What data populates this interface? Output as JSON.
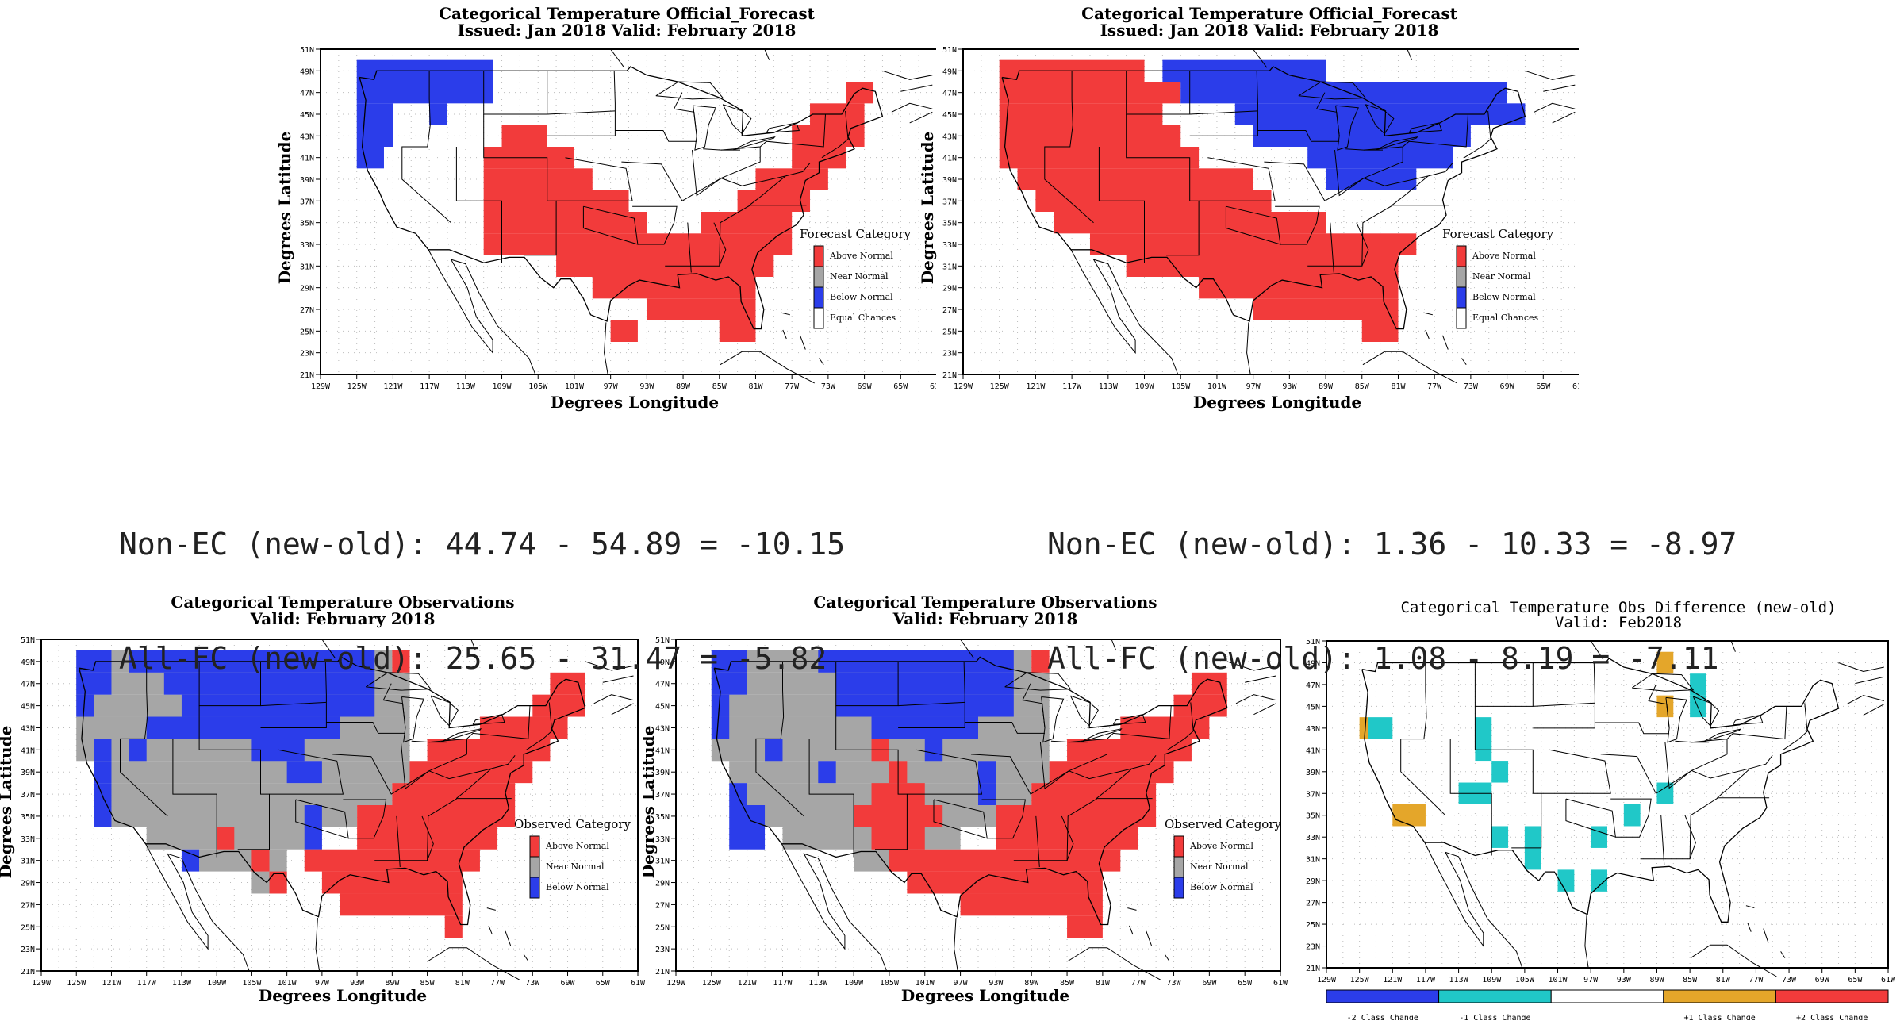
{
  "colors": {
    "above": "#f23b3b",
    "near": "#a6a6a6",
    "below": "#2b3dea",
    "equal": "#ffffff",
    "minus2": "#2b3dea",
    "minus1": "#20c8c8",
    "plus1": "#e4a62a",
    "plus2": "#f23b3b",
    "grid": "#bdbdbd",
    "line": "#000000"
  },
  "panels": [
    {
      "id": "fc_old",
      "title1": "Categorical Temperature Official_Forecast",
      "title2": "Issued: Jan 2018 Valid: February 2018",
      "xlabel": "Degrees Longitude",
      "ylabel": "Degrees Latitude",
      "legend_title": "Forecast Category",
      "legend": [
        {
          "label": "Above Normal",
          "cat": "above"
        },
        {
          "label": "Near Normal",
          "cat": "near"
        },
        {
          "label": "Below Normal",
          "cat": "below"
        },
        {
          "label": "Equal Chances",
          "cat": "equal"
        }
      ],
      "xticks": [
        "129W",
        "125W",
        "121W",
        "117W",
        "113W",
        "109W",
        "105W",
        "101W",
        "97W",
        "93W",
        "89W",
        "85W",
        "81W",
        "77W",
        "73W",
        "69W",
        "65W",
        "61W"
      ],
      "yticks": [
        "21N",
        "23N",
        "25N",
        "27N",
        "29N",
        "31N",
        "33N",
        "35N",
        "37N",
        "39N",
        "41N",
        "43N",
        "45N",
        "47N",
        "49N",
        "51N"
      ],
      "cells": {
        "below": [
          [
            49,
            -125,
            -110
          ],
          [
            47,
            -125,
            -110
          ],
          [
            45,
            -125,
            -121
          ],
          [
            45,
            -117,
            -115
          ],
          [
            43,
            -125,
            -121
          ],
          [
            41,
            -125,
            -122
          ]
        ],
        "above": [
          [
            43,
            -109,
            -104
          ],
          [
            41,
            -111,
            -101
          ],
          [
            39,
            -111,
            -99
          ],
          [
            37,
            -111,
            -95
          ],
          [
            35,
            -111,
            -93
          ],
          [
            33,
            -111,
            -77
          ],
          [
            31,
            -103,
            -79
          ],
          [
            29,
            -99,
            -81
          ],
          [
            27,
            -93,
            -81
          ],
          [
            25,
            -97,
            -94
          ],
          [
            25,
            -85,
            -81
          ],
          [
            35,
            -87,
            -77
          ],
          [
            37,
            -83,
            -75
          ],
          [
            39,
            -81,
            -73
          ],
          [
            41,
            -77,
            -71
          ],
          [
            43,
            -77,
            -69
          ],
          [
            45,
            -75,
            -69
          ],
          [
            47,
            -71,
            -68
          ]
        ]
      }
    },
    {
      "id": "fc_new",
      "title1": "Categorical Temperature Official_Forecast",
      "title2": "Issued: Jan 2018 Valid: February 2018",
      "xlabel": "Degrees Longitude",
      "ylabel": "Degrees Latitude",
      "legend_title": "Forecast Category",
      "legend": [
        {
          "label": "Above Normal",
          "cat": "above"
        },
        {
          "label": "Near Normal",
          "cat": "near"
        },
        {
          "label": "Below Normal",
          "cat": "below"
        },
        {
          "label": "Equal Chances",
          "cat": "equal"
        }
      ],
      "xticks": [
        "129W",
        "125W",
        "121W",
        "117W",
        "113W",
        "109W",
        "105W",
        "101W",
        "97W",
        "93W",
        "89W",
        "85W",
        "81W",
        "77W",
        "73W",
        "69W",
        "65W",
        "61W"
      ],
      "yticks": [
        "21N",
        "23N",
        "25N",
        "27N",
        "29N",
        "31N",
        "33N",
        "35N",
        "37N",
        "39N",
        "41N",
        "43N",
        "45N",
        "47N",
        "49N",
        "51N"
      ],
      "cells": {
        "above": [
          [
            49,
            -125,
            -109
          ],
          [
            47,
            -125,
            -105
          ],
          [
            45,
            -125,
            -107
          ],
          [
            43,
            -125,
            -105
          ],
          [
            41,
            -125,
            -103
          ],
          [
            39,
            -123,
            -97
          ],
          [
            37,
            -121,
            -95
          ],
          [
            35,
            -119,
            -89
          ],
          [
            33,
            -115,
            -79
          ],
          [
            31,
            -111,
            -81
          ],
          [
            29,
            -103,
            -81
          ],
          [
            27,
            -97,
            -81
          ],
          [
            25,
            -85,
            -81
          ]
        ],
        "below": [
          [
            49,
            -107,
            -89
          ],
          [
            47,
            -105,
            -69
          ],
          [
            45,
            -99,
            -67
          ],
          [
            43,
            -97,
            -73
          ],
          [
            41,
            -91,
            -75
          ],
          [
            39,
            -89,
            -79
          ]
        ]
      }
    },
    {
      "id": "obs_old",
      "title1": "Categorical Temperature Observations",
      "title2": "Valid: February 2018",
      "xlabel": "Degrees Longitude",
      "ylabel": "Degrees Latitude",
      "legend_title": "Observed Category",
      "legend": [
        {
          "label": "Above Normal",
          "cat": "above"
        },
        {
          "label": "Near Normal",
          "cat": "near"
        },
        {
          "label": "Below Normal",
          "cat": "below"
        }
      ],
      "xticks": [
        "129W",
        "125W",
        "121W",
        "117W",
        "113W",
        "109W",
        "105W",
        "101W",
        "97W",
        "93W",
        "89W",
        "85W",
        "81W",
        "77W",
        "73W",
        "69W",
        "65W",
        "61W"
      ],
      "yticks": [
        "21N",
        "23N",
        "25N",
        "27N",
        "29N",
        "31N",
        "33N",
        "35N",
        "37N",
        "39N",
        "41N",
        "43N",
        "45N",
        "47N",
        "49N",
        "51N"
      ],
      "cells": {
        "near": [
          [
            49,
            -125,
            -89
          ],
          [
            47,
            -125,
            -87
          ],
          [
            45,
            -125,
            -87
          ],
          [
            43,
            -125,
            -87
          ],
          [
            41,
            -125,
            -87
          ],
          [
            39,
            -123,
            -87
          ],
          [
            37,
            -121,
            -89
          ],
          [
            35,
            -121,
            -93
          ],
          [
            33,
            -117,
            -97
          ],
          [
            31,
            -111,
            -101
          ],
          [
            29,
            -105,
            -101
          ]
        ],
        "below": [
          [
            49,
            -125,
            -121
          ],
          [
            49,
            -119,
            -91
          ],
          [
            47,
            -125,
            -121
          ],
          [
            47,
            -115,
            -91
          ],
          [
            45,
            -125,
            -123
          ],
          [
            45,
            -113,
            -91
          ],
          [
            43,
            -117,
            -95
          ],
          [
            41,
            -123,
            -121
          ],
          [
            41,
            -119,
            -117
          ],
          [
            41,
            -105,
            -99
          ],
          [
            39,
            -123,
            -121
          ],
          [
            39,
            -101,
            -97
          ],
          [
            37,
            -123,
            -121
          ],
          [
            35,
            -123,
            -121
          ],
          [
            35,
            -99,
            -97
          ],
          [
            33,
            -99,
            -97
          ],
          [
            31,
            -113,
            -111
          ]
        ],
        "above": [
          [
            49,
            -89,
            -87
          ],
          [
            47,
            -71,
            -67
          ],
          [
            45,
            -73,
            -67
          ],
          [
            43,
            -79,
            -69
          ],
          [
            41,
            -85,
            -71
          ],
          [
            39,
            -87,
            -73
          ],
          [
            37,
            -89,
            -75
          ],
          [
            35,
            -93,
            -75
          ],
          [
            33,
            -109,
            -107
          ],
          [
            33,
            -93,
            -77
          ],
          [
            31,
            -105,
            -103
          ],
          [
            31,
            -99,
            -79
          ],
          [
            29,
            -103,
            -101
          ],
          [
            29,
            -97,
            -81
          ],
          [
            27,
            -95,
            -81
          ],
          [
            25,
            -83,
            -81
          ]
        ]
      }
    },
    {
      "id": "obs_new",
      "title1": "Categorical Temperature Observations",
      "title2": "Valid: February 2018",
      "xlabel": "Degrees Longitude",
      "ylabel": "Degrees Latitude",
      "legend_title": "Observed Category",
      "legend": [
        {
          "label": "Above Normal",
          "cat": "above"
        },
        {
          "label": "Near Normal",
          "cat": "near"
        },
        {
          "label": "Below Normal",
          "cat": "below"
        }
      ],
      "xticks": [
        "129W",
        "125W",
        "121W",
        "117W",
        "113W",
        "109W",
        "105W",
        "101W",
        "97W",
        "93W",
        "89W",
        "85W",
        "81W",
        "77W",
        "73W",
        "69W",
        "65W",
        "61W"
      ],
      "yticks": [
        "21N",
        "23N",
        "25N",
        "27N",
        "29N",
        "31N",
        "33N",
        "35N",
        "37N",
        "39N",
        "41N",
        "43N",
        "45N",
        "47N",
        "49N",
        "51N"
      ],
      "cells": {
        "near": [
          [
            49,
            -125,
            -89
          ],
          [
            47,
            -125,
            -87
          ],
          [
            45,
            -125,
            -87
          ],
          [
            43,
            -125,
            -87
          ],
          [
            41,
            -125,
            -87
          ],
          [
            39,
            -123,
            -87
          ],
          [
            37,
            -121,
            -89
          ],
          [
            35,
            -121,
            -93
          ],
          [
            33,
            -117,
            -97
          ],
          [
            31,
            -109,
            -101
          ]
        ],
        "below": [
          [
            49,
            -125,
            -121
          ],
          [
            49,
            -113,
            -91
          ],
          [
            47,
            -125,
            -121
          ],
          [
            47,
            -111,
            -91
          ],
          [
            45,
            -125,
            -123
          ],
          [
            45,
            -111,
            -91
          ],
          [
            43,
            -125,
            -123
          ],
          [
            43,
            -107,
            -95
          ],
          [
            41,
            -119,
            -117
          ],
          [
            41,
            -101,
            -99
          ],
          [
            39,
            -113,
            -111
          ],
          [
            39,
            -95,
            -93
          ],
          [
            37,
            -123,
            -121
          ],
          [
            37,
            -95,
            -93
          ],
          [
            35,
            -123,
            -119
          ],
          [
            33,
            -123,
            -119
          ]
        ],
        "above": [
          [
            49,
            -89,
            -87
          ],
          [
            47,
            -71,
            -67
          ],
          [
            45,
            -73,
            -67
          ],
          [
            43,
            -79,
            -69
          ],
          [
            41,
            -107,
            -105
          ],
          [
            41,
            -85,
            -71
          ],
          [
            39,
            -105,
            -103
          ],
          [
            39,
            -87,
            -73
          ],
          [
            37,
            -107,
            -101
          ],
          [
            37,
            -89,
            -75
          ],
          [
            35,
            -109,
            -99
          ],
          [
            35,
            -93,
            -75
          ],
          [
            33,
            -107,
            -101
          ],
          [
            33,
            -93,
            -77
          ],
          [
            31,
            -105,
            -79
          ],
          [
            29,
            -103,
            -81
          ],
          [
            27,
            -97,
            -81
          ],
          [
            25,
            -85,
            -81
          ]
        ]
      }
    },
    {
      "id": "obs_diff",
      "title1": "Categorical Temperature Obs Difference (new-old)",
      "title2": "Valid: Feb2018",
      "xlabel": "",
      "ylabel": "",
      "legend_title": "",
      "legend": [],
      "colorbar": [
        {
          "label": "-2 Class Change",
          "cat": "minus2"
        },
        {
          "label": "-1 Class Change",
          "cat": "minus1"
        },
        {
          "label": "",
          "cat": "equal"
        },
        {
          "label": "+1 Class Change",
          "cat": "plus1"
        },
        {
          "label": "+2 Class Change",
          "cat": "plus2"
        }
      ],
      "xticks": [
        "129W",
        "125W",
        "121W",
        "117W",
        "113W",
        "109W",
        "105W",
        "101W",
        "97W",
        "93W",
        "89W",
        "85W",
        "81W",
        "77W",
        "73W",
        "69W",
        "65W",
        "61W"
      ],
      "yticks": [
        "21N",
        "23N",
        "25N",
        "27N",
        "29N",
        "31N",
        "33N",
        "35N",
        "37N",
        "39N",
        "41N",
        "43N",
        "45N",
        "47N",
        "49N",
        "51N"
      ],
      "cells": {
        "plus1": [
          [
            43,
            -125,
            -124
          ],
          [
            35,
            -121,
            -117
          ],
          [
            49,
            -89,
            -87
          ],
          [
            45,
            -89,
            -87
          ]
        ],
        "minus1": [
          [
            43,
            -124,
            -121
          ],
          [
            43,
            -111,
            -109
          ],
          [
            41,
            -111,
            -109
          ],
          [
            39,
            -109,
            -107
          ],
          [
            37,
            -113,
            -109
          ],
          [
            35,
            -93,
            -91
          ],
          [
            33,
            -109,
            -107
          ],
          [
            33,
            -105,
            -103
          ],
          [
            33,
            -97,
            -95
          ],
          [
            31,
            -105,
            -103
          ],
          [
            29,
            -101,
            -99
          ],
          [
            29,
            -97,
            -95
          ],
          [
            37,
            -89,
            -87
          ],
          [
            45,
            -85,
            -83
          ],
          [
            47,
            -85,
            -83
          ]
        ]
      }
    }
  ],
  "scores": [
    {
      "line1": "Non-EC (new-old): 44.74 - 54.89 = -10.15",
      "line2": "All-FC (new-old): 25.65 - 31.47 = -5.82"
    },
    {
      "line1": "Non-EC (new-old): 1.36 - 10.33 = -8.97",
      "line2": "All-FC (new-old): 1.08 - 8.19 = -7.11"
    }
  ]
}
